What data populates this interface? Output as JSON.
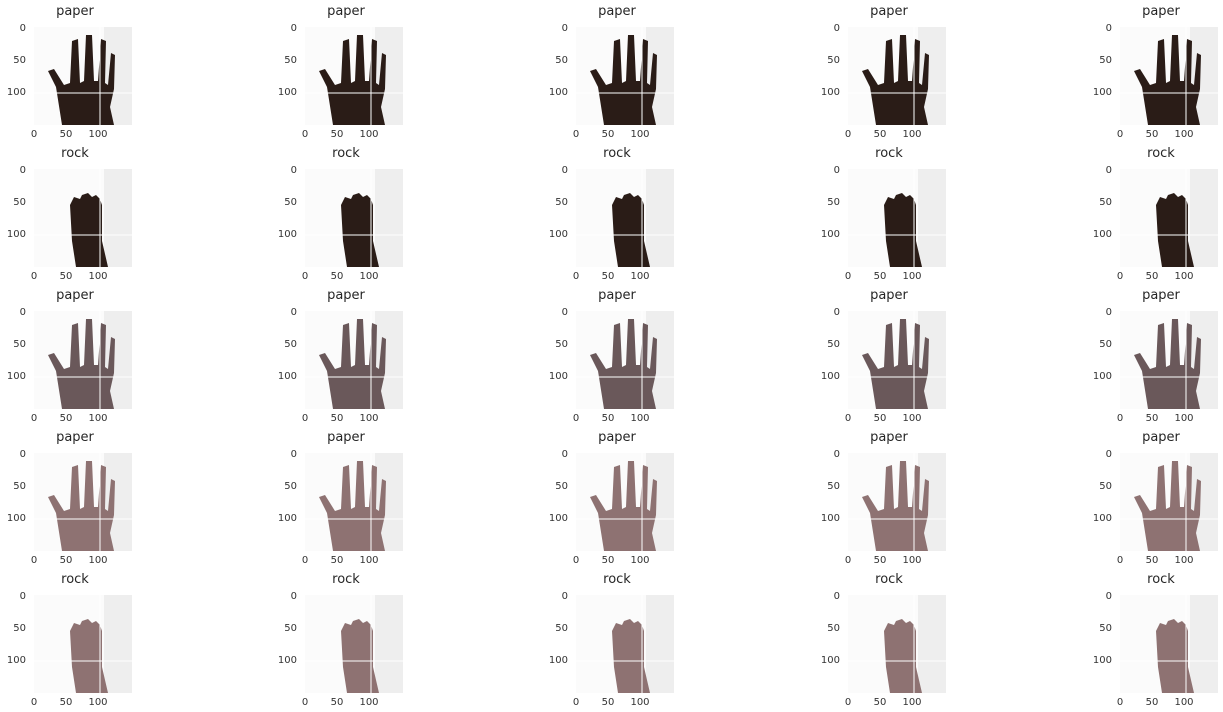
{
  "axis": {
    "x_ticks": [
      "0",
      "50",
      "100"
    ],
    "y_ticks": [
      "0",
      "50",
      "100"
    ]
  },
  "skin_tones": [
    "#2a1c17",
    "#2a1c17",
    "#6a585a",
    "#8e7272",
    "#8e7272"
  ],
  "rows": [
    {
      "gesture": "paper",
      "panels": [
        {
          "title": "paper"
        },
        {
          "title": "paper"
        },
        {
          "title": "paper"
        },
        {
          "title": "paper"
        },
        {
          "title": "paper"
        }
      ]
    },
    {
      "gesture": "rock",
      "panels": [
        {
          "title": "rock"
        },
        {
          "title": "rock"
        },
        {
          "title": "rock"
        },
        {
          "title": "rock"
        },
        {
          "title": "rock"
        }
      ]
    },
    {
      "gesture": "paper",
      "panels": [
        {
          "title": "paper"
        },
        {
          "title": "paper"
        },
        {
          "title": "paper"
        },
        {
          "title": "paper"
        },
        {
          "title": "paper"
        }
      ]
    },
    {
      "gesture": "paper",
      "panels": [
        {
          "title": "paper"
        },
        {
          "title": "paper"
        },
        {
          "title": "paper"
        },
        {
          "title": "paper"
        },
        {
          "title": "paper"
        }
      ]
    },
    {
      "gesture": "rock",
      "panels": [
        {
          "title": "rock"
        },
        {
          "title": "rock"
        },
        {
          "title": "rock"
        },
        {
          "title": "rock"
        },
        {
          "title": "rock"
        }
      ]
    }
  ]
}
